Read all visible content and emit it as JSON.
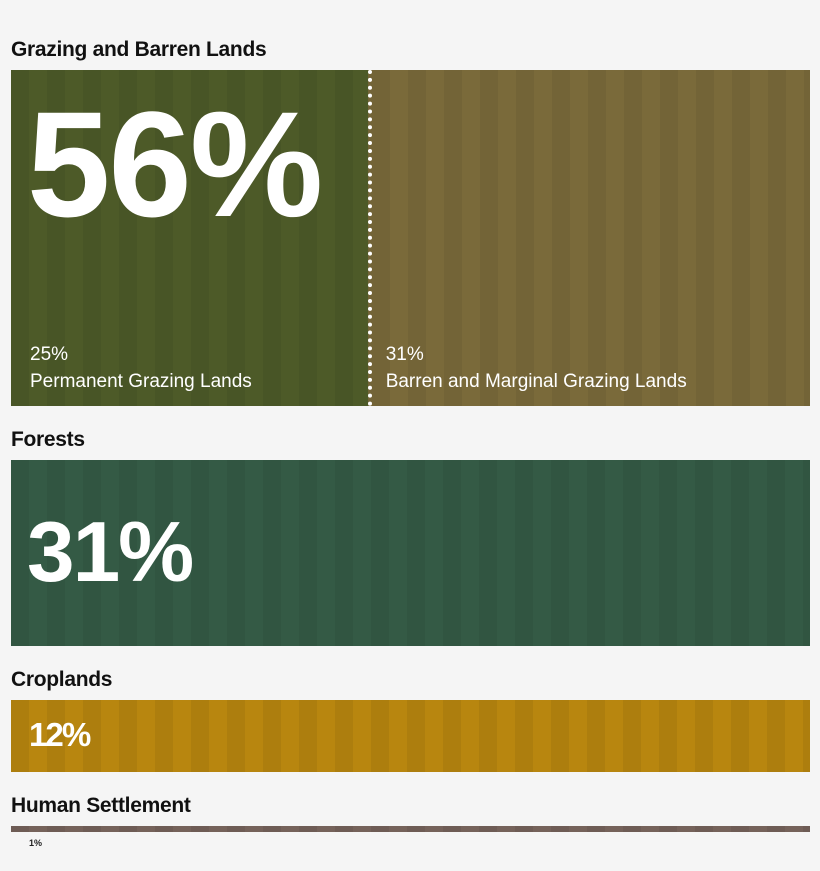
{
  "sections": [
    {
      "title": "Grazing and Barren Lands",
      "value": 56,
      "value_label": "56%",
      "color": "#6b6230",
      "parts": [
        {
          "value": 25,
          "value_label": "25%",
          "name": "Permanent Grazing Lands",
          "color": "#4d5a28"
        },
        {
          "value": 31,
          "value_label": "31%",
          "name": "Barren and Marginal Grazing Lands",
          "color": "#7a6a3a"
        }
      ]
    },
    {
      "title": "Forests",
      "value": 31,
      "value_label": "31%",
      "color": "#345a45"
    },
    {
      "title": "Croplands",
      "value": 12,
      "value_label": "12%",
      "color": "#b8860f"
    },
    {
      "title": "Human Settlement",
      "value": 1,
      "value_label": "1%",
      "color": "#75625a"
    }
  ]
}
